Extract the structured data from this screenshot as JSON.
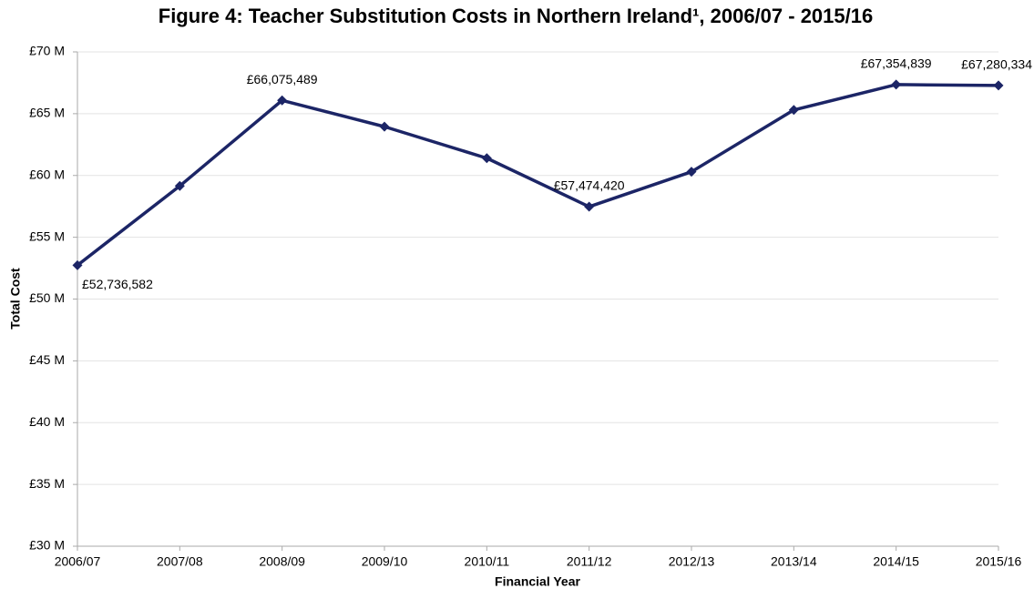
{
  "chart_data": {
    "type": "line",
    "title": "Figure 4: Teacher Substitution Costs in Northern Ireland¹, 2006/07  - 2015/16",
    "x_label": "Financial Year",
    "y_label": "Total Cost",
    "categories": [
      "2006/07",
      "2007/08",
      "2008/09",
      "2009/10",
      "2010/11",
      "2011/12",
      "2012/13",
      "2013/14",
      "2014/15",
      "2015/16"
    ],
    "values": [
      52736582,
      59150000,
      66075489,
      63950000,
      61400000,
      57474420,
      60300000,
      65300000,
      67354839,
      67280334
    ],
    "value_labels": [
      "£52,736,582",
      null,
      "£66,075,489",
      null,
      null,
      "£57,474,420",
      null,
      null,
      "£67,354,839",
      "£67,280,334"
    ],
    "color": "#1c2566",
    "ylim": [
      30000000,
      70000000
    ],
    "yticks": [
      {
        "value": 30000000,
        "label": "£30 M"
      },
      {
        "value": 35000000,
        "label": "£35 M"
      },
      {
        "value": 40000000,
        "label": "£40 M"
      },
      {
        "value": 45000000,
        "label": "£45 M"
      },
      {
        "value": 50000000,
        "label": "£50 M"
      },
      {
        "value": 55000000,
        "label": "£55 M"
      },
      {
        "value": 60000000,
        "label": "£60 M"
      },
      {
        "value": 65000000,
        "label": "£65 M"
      },
      {
        "value": 70000000,
        "label": "£70 M"
      }
    ],
    "grid": true
  }
}
